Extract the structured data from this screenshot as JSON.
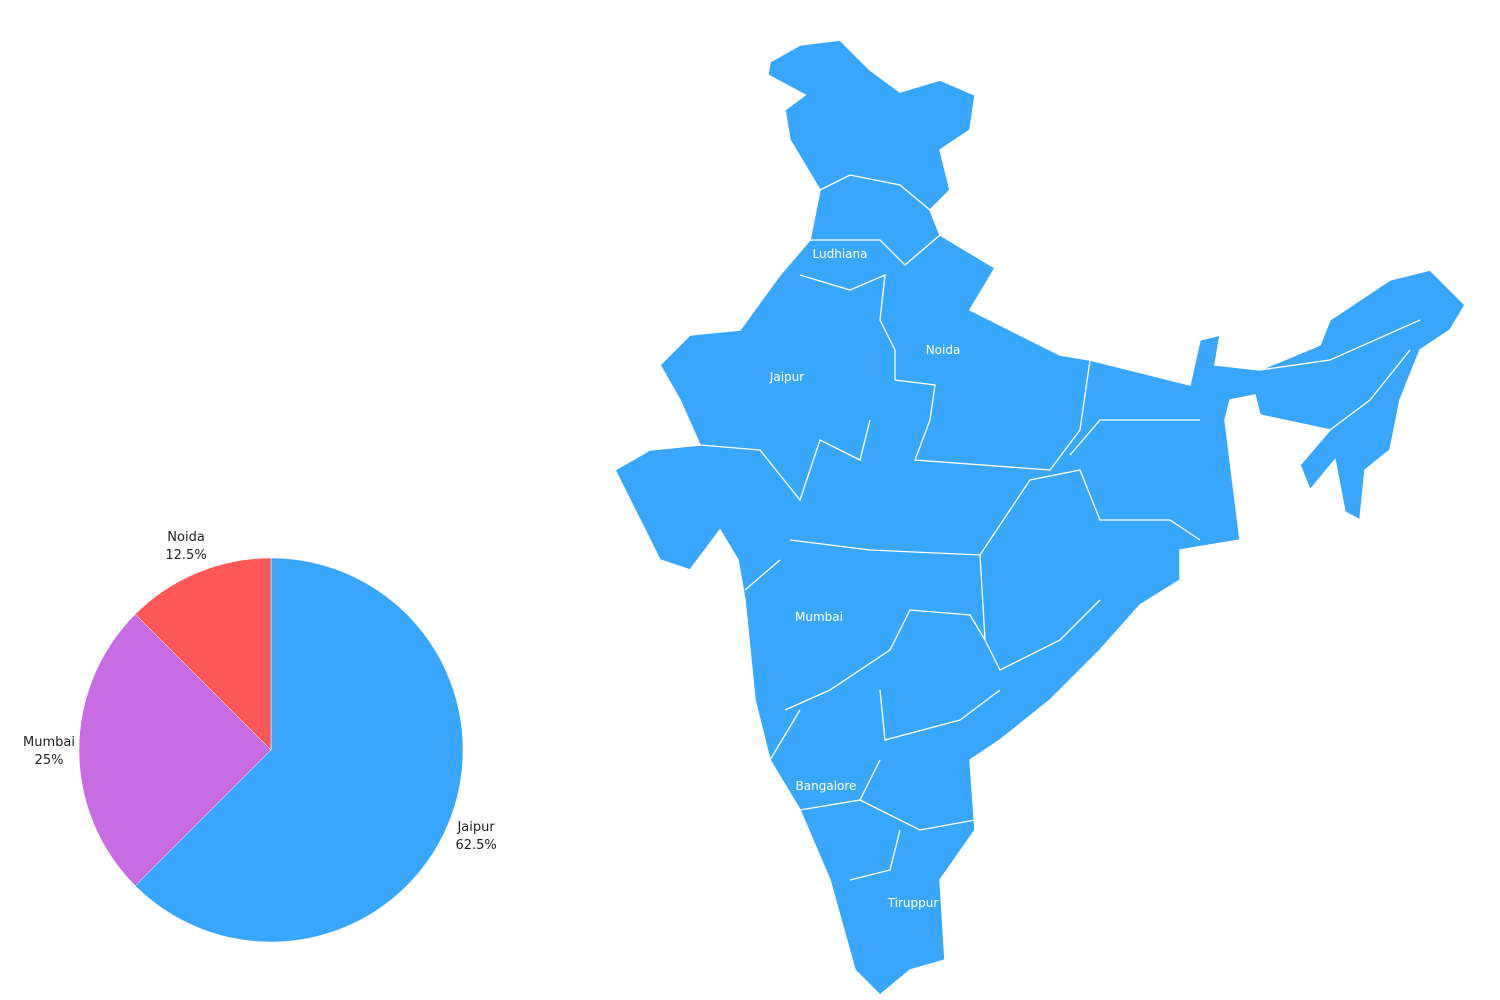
{
  "chart_data": [
    {
      "type": "pie",
      "categories": [
        "Jaipur",
        "Mumbai",
        "Noida"
      ],
      "values": [
        62.5,
        25,
        12.5
      ],
      "labels": [
        "62.5%",
        "25%",
        "12.5%"
      ],
      "colors": [
        "#38a6fc",
        "#c86ce4",
        "#fe5757"
      ]
    },
    {
      "type": "map",
      "region": "India",
      "fill_color": "#38a6fc",
      "border_color": "#ffffff",
      "labels": [
        "Ludhiana",
        "Noida",
        "Jaipur",
        "Mumbai",
        "Bangalore",
        "Tiruppur"
      ]
    }
  ]
}
